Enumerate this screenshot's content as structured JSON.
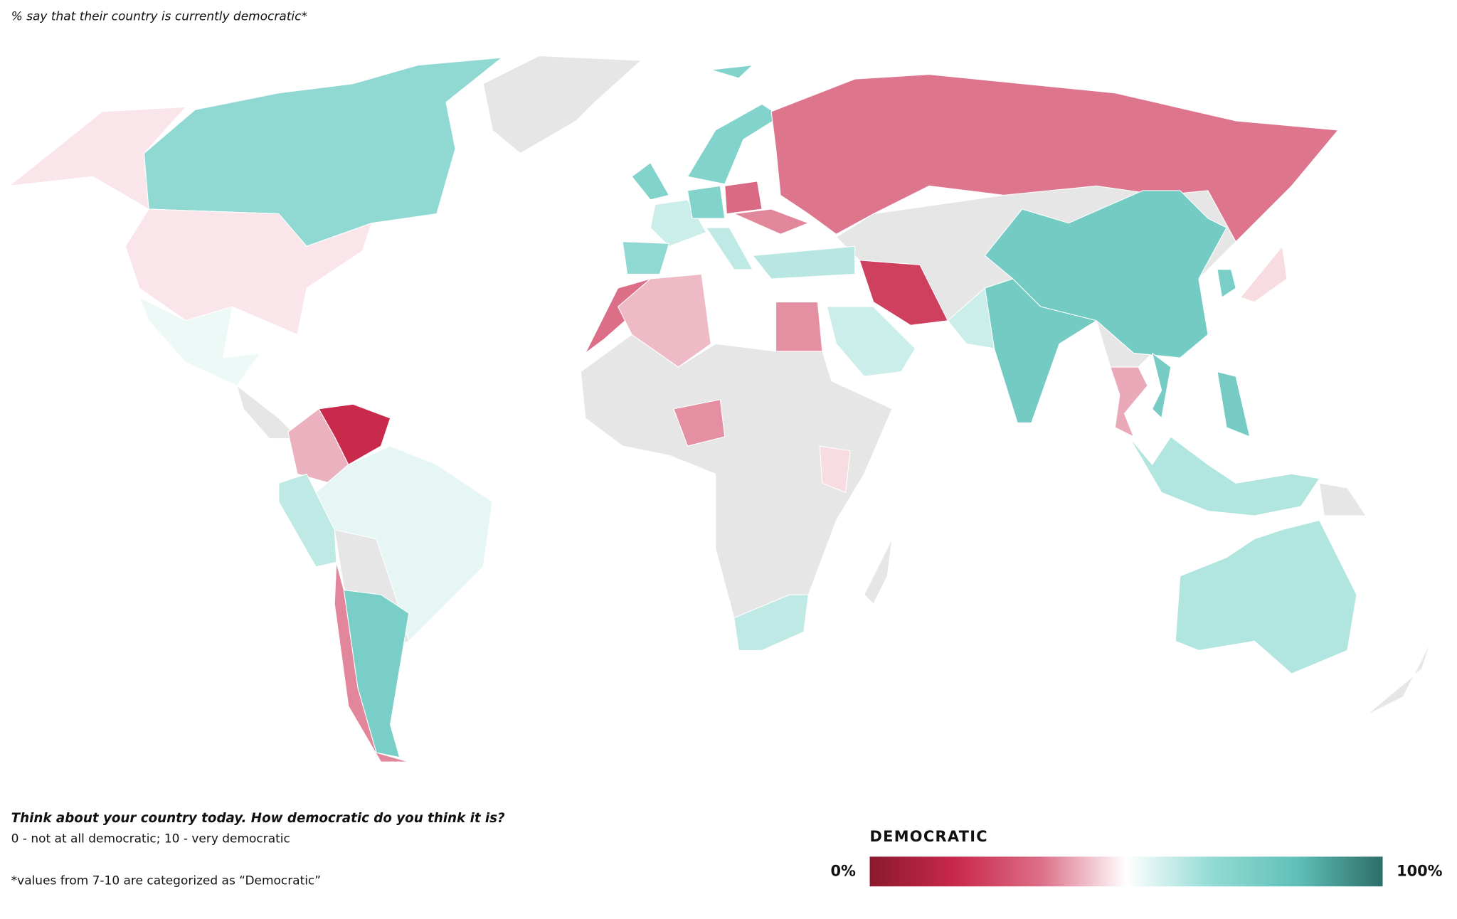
{
  "subtitle": "% say that their country is currently democratic*",
  "notes": {
    "question": "Think about your country today. How democratic do you think it is?",
    "scale": "0 - not at all democratic; 10 - very democratic",
    "footnote": "*values from 7-10 are categorized as “Democratic”"
  },
  "legend": {
    "title": "DEMOCRATIC",
    "ticks": [
      {
        "value": 0,
        "label": "0%"
      },
      {
        "value": 100,
        "label": "100%"
      }
    ],
    "colors": [
      "#8b1a2c",
      "#c9284a",
      "#dc6f88",
      "#ffffff",
      "#93dbd4",
      "#5fc1b9",
      "#2e6d68"
    ]
  },
  "map": {
    "region_values": [
      68,
      47,
      47,
      53,
      17,
      41,
      54,
      60,
      75,
      36,
      72,
      58,
      68,
      72,
      32,
      72,
      60,
      36,
      61,
      34,
      22,
      58,
      37,
      33,
      42,
      37,
      46,
      60,
      77,
      77,
      58,
      46,
      75,
      40,
      76,
      62,
      76,
      62,
      72
    ]
  }
}
